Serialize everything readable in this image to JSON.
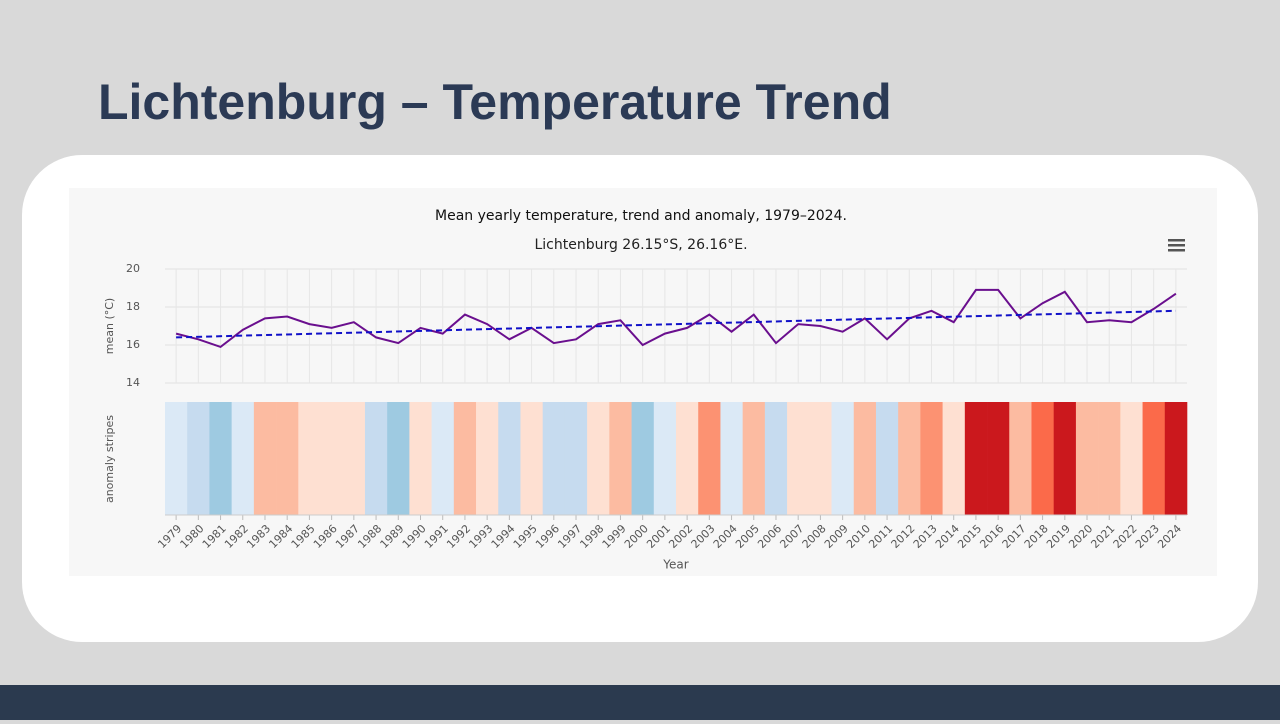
{
  "slide_title": "Lichtenburg – Temperature Trend",
  "chart_data": {
    "type": "line",
    "title": "Mean yearly temperature, trend and anomaly, 1979–2024.",
    "subtitle": "Lichtenburg 26.15°S, 26.16°E.",
    "y_label": "mean (°C)",
    "stripes_label": "anomaly stripes",
    "x_label": "Year",
    "x": [
      1979,
      1980,
      1981,
      1982,
      1983,
      1984,
      1985,
      1986,
      1987,
      1988,
      1989,
      1990,
      1991,
      1992,
      1993,
      1994,
      1995,
      1996,
      1997,
      1998,
      1999,
      2000,
      2001,
      2002,
      2003,
      2004,
      2005,
      2006,
      2007,
      2008,
      2009,
      2010,
      2011,
      2012,
      2013,
      2014,
      2015,
      2016,
      2017,
      2018,
      2019,
      2020,
      2021,
      2022,
      2023,
      2024
    ],
    "series": [
      {
        "color": "#6a0f8e",
        "values": [
          16.6,
          16.3,
          15.9,
          16.8,
          17.4,
          17.5,
          17.1,
          16.9,
          17.2,
          16.4,
          16.1,
          16.9,
          16.6,
          17.6,
          17.1,
          16.3,
          16.9,
          16.1,
          16.3,
          17.1,
          17.3,
          16.0,
          16.6,
          16.9,
          17.6,
          16.7,
          17.6,
          16.1,
          17.1,
          17.0,
          16.7,
          17.4,
          16.3,
          17.4,
          17.8,
          17.2,
          18.9,
          18.9,
          17.4,
          18.2,
          18.8,
          17.2,
          17.3,
          17.2,
          17.9,
          18.7
        ]
      }
    ],
    "trend": {
      "color": "#1010c8",
      "x": [
        1979,
        2024
      ],
      "values": [
        16.4,
        17.8
      ]
    },
    "stripe_colors": [
      "#dbe9f6",
      "#c6dbef",
      "#9ecae1",
      "#dbe9f6",
      "#fcbba1",
      "#fcbba1",
      "#fee0d2",
      "#fee0d2",
      "#fee0d2",
      "#c6dbef",
      "#9ecae1",
      "#fee0d2",
      "#dbe9f6",
      "#fcbba1",
      "#fee0d2",
      "#c6dbef",
      "#fee0d2",
      "#c6dbef",
      "#c6dbef",
      "#fee0d2",
      "#fcbba1",
      "#9ecae1",
      "#dbe9f6",
      "#fee0d2",
      "#fc9272",
      "#dbe9f6",
      "#fcbba1",
      "#c6dbef",
      "#fee0d2",
      "#fee0d2",
      "#dbe9f6",
      "#fcbba1",
      "#c6dbef",
      "#fcbba1",
      "#fc9272",
      "#fee0d2",
      "#cb181d",
      "#cb181d",
      "#fcbba1",
      "#fb6a4a",
      "#cb181d",
      "#fcbba1",
      "#fcbba1",
      "#fee0d2",
      "#fb6a4a",
      "#cb181d"
    ],
    "xlim": [
      1978.5,
      2024.5
    ],
    "ylim": [
      14,
      20
    ],
    "yticks": [
      14,
      16,
      18,
      20
    ],
    "grid": true
  }
}
